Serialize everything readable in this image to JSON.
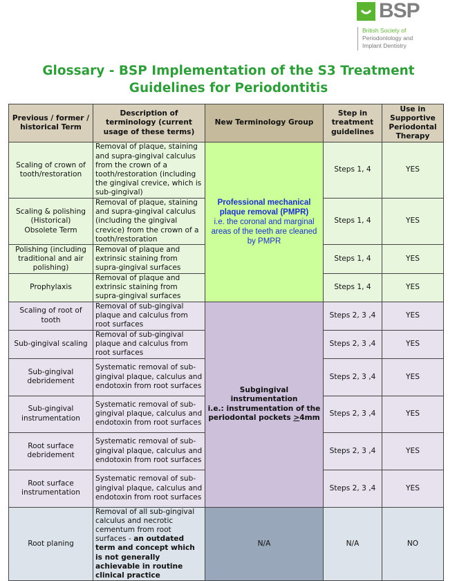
{
  "logo": {
    "brand": "BSP",
    "line1": "British Society of",
    "line2": "Periodontology and",
    "line3": "Implant Dentistry",
    "colors": {
      "green": "#5cb531",
      "grey": "#808080"
    }
  },
  "title": {
    "line1": "Glossary - BSP Implementation of the S3 Treatment",
    "line2": "Guidelines for Periodontitis"
  },
  "table": {
    "headers": [
      "Previous / former / historical Term",
      "Description of terminology (current usage of these terms)",
      "New Terminology Group",
      "Step in treatment guidelines",
      "Use in Supportive Periodontal Therapy"
    ],
    "groups": {
      "pmpr": {
        "line1": "Professional mechanical plaque removal (PMPR)",
        "line2": "i.e. the coronal and marginal areas of the teeth are cleaned by PMPR"
      },
      "sub": {
        "line1": "Subgingival instrumentation",
        "line2": "i.e.: instrumentation of the periodontal pockets ",
        "ge": ">",
        "line3": "4mm"
      },
      "na": "N/A"
    },
    "rows": [
      {
        "term": "Scaling of crown of tooth/restoration",
        "desc": "Removal of plaque, staining and supra-gingival calculus from the crown of a tooth/restoration (including the gingival crevice, which is sub-gingival)",
        "steps": "Steps 1, 4",
        "spt": "YES"
      },
      {
        "term": "Scaling & polishing (Historical)",
        "term_bold": "Obsolete Term",
        "desc": "Removal of plaque, staining and supra-gingival calculus (including the gingival crevice) from the crown of a tooth/restoration",
        "steps": "Steps 1, 4",
        "spt": "YES"
      },
      {
        "term": "Polishing (including traditional and air polishing)",
        "desc": "Removal of plaque and extrinsic staining from supra-gingival surfaces",
        "steps": "Steps 1, 4",
        "spt": "YES"
      },
      {
        "term": "Prophylaxis",
        "desc": "Removal of plaque and extrinsic staining from supra-gingival surfaces",
        "steps": "Steps 1, 4",
        "spt": "YES"
      },
      {
        "term": "Scaling of root of tooth",
        "desc": "Removal of sub-gingival plaque and calculus from root surfaces",
        "steps": "Steps 2, 3 ,4",
        "spt": "YES"
      },
      {
        "term": "Sub-gingival scaling",
        "desc": "Removal of sub-gingival plaque and calculus from root surfaces",
        "steps": "Steps 2, 3 ,4",
        "spt": "YES"
      },
      {
        "term": "Sub-gingival debridement",
        "desc": "Systematic removal of sub-gingival plaque, calculus and endotoxin from root surfaces",
        "steps": "Steps 2, 3 ,4",
        "spt": "YES"
      },
      {
        "term": "Sub-gingival instrumentation",
        "desc": "Systematic removal of sub-gingival plaque, calculus and endotoxin from root surfaces",
        "steps": "Steps 2, 3 ,4",
        "spt": "YES"
      },
      {
        "term": "Root surface debridement",
        "desc": "Systematic removal of sub-gingival plaque, calculus and endotoxin from root surfaces",
        "steps": "Steps 2, 3 ,4",
        "spt": "YES"
      },
      {
        "term": "Root surface instrumentation",
        "desc": "Systematic removal of sub-gingival plaque, calculus and endotoxin from root surfaces",
        "steps": "Steps 2, 3 ,4",
        "spt": "YES"
      },
      {
        "term": "Root planing",
        "desc": "Removal of all sub-gingival calculus and necrotic cementum from root surfaces - ",
        "desc_bold": "an outdated term and concept which is not generally achievable in routine clinical practice",
        "steps": "N/A",
        "spt": "NO"
      }
    ],
    "colors": {
      "header": "#d8d0bb",
      "green_rows": "#e8f6dd",
      "pmpr": "#ccff99",
      "purple_rows": "#e8e2ee",
      "subgingival": "#ccc0da",
      "grey_row": "#dde3ea",
      "na": "#98a8ba"
    }
  }
}
